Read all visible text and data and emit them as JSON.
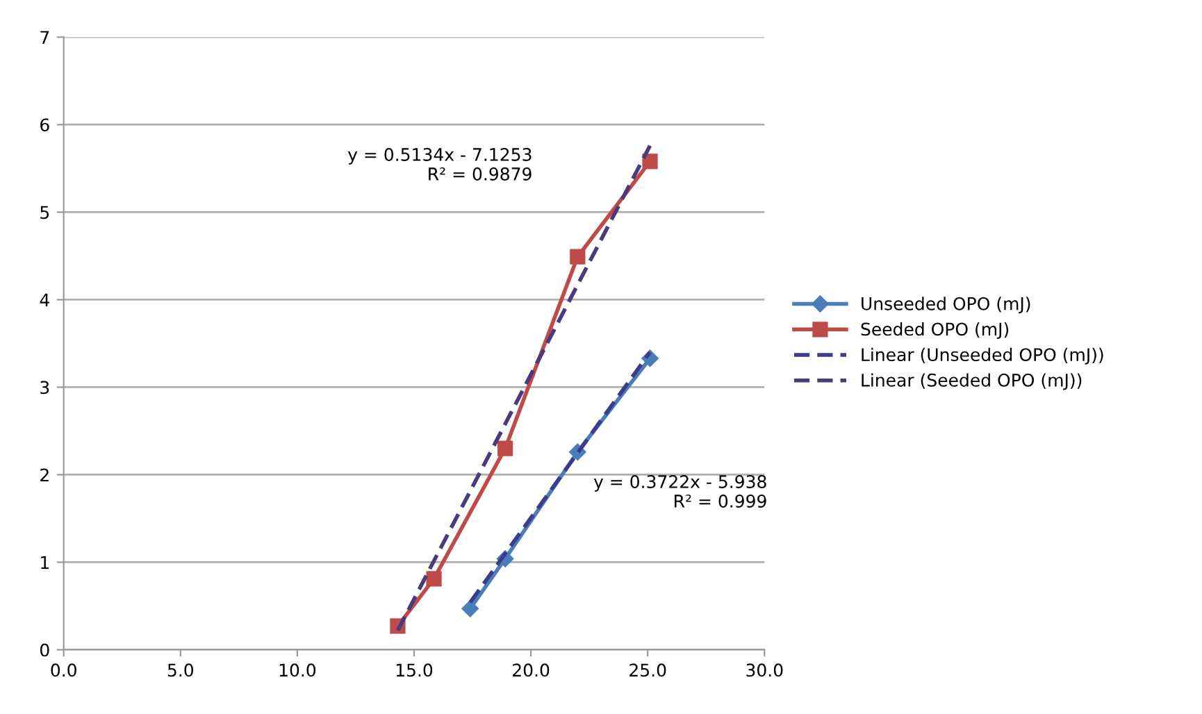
{
  "chart_data": {
    "type": "line",
    "xlim": [
      0,
      30
    ],
    "ylim": [
      0,
      7
    ],
    "xticks": [
      {
        "value": 0,
        "label": "0.0"
      },
      {
        "value": 5,
        "label": "5.0"
      },
      {
        "value": 10,
        "label": "10.0"
      },
      {
        "value": 15,
        "label": "15.0"
      },
      {
        "value": 20,
        "label": "20.0"
      },
      {
        "value": 25,
        "label": "25.0"
      },
      {
        "value": 30,
        "label": "30.0"
      }
    ],
    "yticks": [
      0,
      1,
      2,
      3,
      4,
      5,
      6,
      7
    ],
    "grid": "y",
    "legend": "right",
    "series": [
      {
        "name": "Unseeded OPO (mJ)",
        "color": "#4a7ebb",
        "marker": "diamond",
        "line_style": "solid",
        "x": [
          17.4,
          18.9,
          22.0,
          25.1
        ],
        "values": [
          0.47,
          1.04,
          2.26,
          3.33
        ]
      },
      {
        "name": "Seeded OPO (mJ)",
        "color": "#be4b48",
        "marker": "square",
        "line_style": "solid",
        "x": [
          14.3,
          15.85,
          18.9,
          22.0,
          25.1
        ],
        "values": [
          0.27,
          0.81,
          2.3,
          4.49,
          5.58
        ]
      },
      {
        "name": "Linear (Unseeded OPO (mJ))",
        "color": "#3c3c8c",
        "marker": "none",
        "line_style": "dashed",
        "x": [
          17.4,
          25.1
        ],
        "values": [
          0.54,
          3.4
        ]
      },
      {
        "name": "Linear (Seeded OPO (mJ))",
        "color": "#4b3a7c",
        "marker": "none",
        "line_style": "dashed",
        "x": [
          14.3,
          25.1
        ],
        "values": [
          0.22,
          5.76
        ]
      }
    ],
    "annotations": [
      "y = 0.5134x - 7.1253\nR² = 0.9879",
      "y = 0.3722x - 5.938\nR² = 0.999"
    ]
  }
}
